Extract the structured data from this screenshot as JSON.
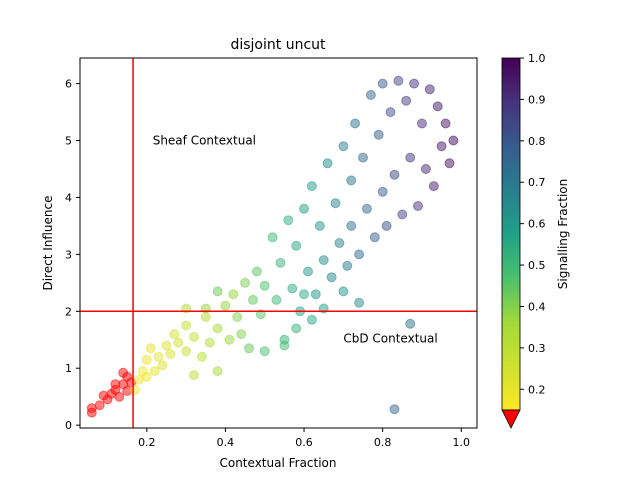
{
  "chart_data": {
    "type": "scatter",
    "title": "disjoint uncut",
    "xlabel": "Contextual Fraction",
    "ylabel": "Direct Influence",
    "xlim": [
      0.03,
      1.04
    ],
    "ylim": [
      -0.05,
      6.45
    ],
    "xticks": [
      0.2,
      0.4,
      0.6,
      0.8,
      1.0
    ],
    "xtick_labels": [
      "0.2",
      "0.4",
      "0.6",
      "0.8",
      "1.0"
    ],
    "yticks": [
      0,
      1,
      2,
      3,
      4,
      5,
      6
    ],
    "ytick_labels": [
      "0",
      "1",
      "2",
      "3",
      "4",
      "5",
      "6"
    ],
    "grid": false,
    "reference_lines": {
      "vertical_x": 0.165,
      "horizontal_y": 2.0,
      "color": "#ff0000"
    },
    "annotations": [
      {
        "text": "Sheaf Contextual",
        "x": 0.215,
        "y": 5.0
      },
      {
        "text": "CbD Contextual",
        "x": 0.7,
        "y": 1.52
      }
    ],
    "colorbar": {
      "label": "Signalling Fraction",
      "colormap": "viridis_r",
      "range": [
        0.15,
        1.0
      ],
      "ticks": [
        0.2,
        0.3,
        0.4,
        0.5,
        0.6,
        0.7,
        0.8,
        0.9,
        1.0
      ],
      "tick_labels": [
        "0.2",
        "0.3",
        "0.4",
        "0.5",
        "0.6",
        "0.7",
        "0.8",
        "0.9",
        "1.0"
      ],
      "extend_min_color": "#ff0000"
    },
    "point_alpha": 0.5,
    "below_range_color": "#ff0000",
    "series": [
      {
        "points": [
          [
            0.06,
            0.22,
            0.1
          ],
          [
            0.06,
            0.3,
            0.1
          ],
          [
            0.08,
            0.35,
            0.1
          ],
          [
            0.1,
            0.45,
            0.1
          ],
          [
            0.11,
            0.55,
            0.1
          ],
          [
            0.12,
            0.62,
            0.1
          ],
          [
            0.13,
            0.5,
            0.1
          ],
          [
            0.14,
            0.72,
            0.1
          ],
          [
            0.15,
            0.6,
            0.1
          ],
          [
            0.15,
            0.85,
            0.1
          ],
          [
            0.16,
            0.75,
            0.1
          ],
          [
            0.12,
            0.72,
            0.1
          ],
          [
            0.14,
            0.92,
            0.1
          ],
          [
            0.09,
            0.52,
            0.1
          ],
          [
            0.17,
            0.62,
            0.16
          ],
          [
            0.18,
            0.8,
            0.17
          ],
          [
            0.19,
            0.95,
            0.18
          ],
          [
            0.2,
            0.85,
            0.18
          ],
          [
            0.2,
            1.15,
            0.19
          ],
          [
            0.21,
            1.35,
            0.2
          ],
          [
            0.22,
            0.95,
            0.2
          ],
          [
            0.23,
            1.2,
            0.21
          ],
          [
            0.24,
            1.05,
            0.22
          ],
          [
            0.25,
            1.4,
            0.23
          ],
          [
            0.26,
            1.25,
            0.23
          ],
          [
            0.27,
            1.6,
            0.24
          ],
          [
            0.28,
            1.45,
            0.25
          ],
          [
            0.3,
            1.3,
            0.27
          ],
          [
            0.3,
            1.75,
            0.28
          ],
          [
            0.32,
            1.55,
            0.28
          ],
          [
            0.32,
            0.88,
            0.3
          ],
          [
            0.34,
            1.2,
            0.3
          ],
          [
            0.35,
            1.9,
            0.32
          ],
          [
            0.36,
            1.45,
            0.32
          ],
          [
            0.38,
            1.7,
            0.34
          ],
          [
            0.38,
            0.95,
            0.36
          ],
          [
            0.4,
            2.1,
            0.38
          ],
          [
            0.41,
            1.5,
            0.37
          ],
          [
            0.42,
            2.3,
            0.38
          ],
          [
            0.43,
            1.9,
            0.4
          ],
          [
            0.44,
            1.6,
            0.4
          ],
          [
            0.45,
            2.5,
            0.41
          ],
          [
            0.46,
            1.35,
            0.43
          ],
          [
            0.47,
            2.2,
            0.44
          ],
          [
            0.48,
            2.7,
            0.45
          ],
          [
            0.49,
            1.95,
            0.45
          ],
          [
            0.5,
            2.45,
            0.47
          ],
          [
            0.5,
            1.3,
            0.48
          ],
          [
            0.52,
            3.3,
            0.5
          ],
          [
            0.53,
            2.2,
            0.5
          ],
          [
            0.54,
            2.85,
            0.52
          ],
          [
            0.55,
            1.5,
            0.52
          ],
          [
            0.56,
            3.6,
            0.54
          ],
          [
            0.57,
            2.4,
            0.55
          ],
          [
            0.58,
            3.15,
            0.56
          ],
          [
            0.59,
            2.0,
            0.57
          ],
          [
            0.6,
            3.8,
            0.58
          ],
          [
            0.61,
            2.7,
            0.6
          ],
          [
            0.62,
            4.2,
            0.6
          ],
          [
            0.63,
            2.3,
            0.61
          ],
          [
            0.64,
            3.5,
            0.62
          ],
          [
            0.65,
            2.9,
            0.64
          ],
          [
            0.66,
            4.6,
            0.64
          ],
          [
            0.67,
            2.6,
            0.66
          ],
          [
            0.68,
            3.9,
            0.67
          ],
          [
            0.69,
            3.2,
            0.68
          ],
          [
            0.7,
            4.9,
            0.68
          ],
          [
            0.71,
            2.8,
            0.7
          ],
          [
            0.72,
            4.3,
            0.71
          ],
          [
            0.72,
            3.5,
            0.72
          ],
          [
            0.73,
            5.3,
            0.72
          ],
          [
            0.74,
            3.0,
            0.74
          ],
          [
            0.75,
            4.7,
            0.75
          ],
          [
            0.76,
            3.8,
            0.76
          ],
          [
            0.77,
            5.8,
            0.76
          ],
          [
            0.78,
            3.3,
            0.78
          ],
          [
            0.79,
            5.1,
            0.79
          ],
          [
            0.8,
            4.1,
            0.8
          ],
          [
            0.8,
            6.0,
            0.8
          ],
          [
            0.81,
            3.5,
            0.82
          ],
          [
            0.82,
            5.5,
            0.83
          ],
          [
            0.83,
            4.4,
            0.84
          ],
          [
            0.84,
            6.05,
            0.85
          ],
          [
            0.85,
            3.7,
            0.86
          ],
          [
            0.86,
            5.7,
            0.87
          ],
          [
            0.87,
            4.7,
            0.88
          ],
          [
            0.88,
            6.0,
            0.9
          ],
          [
            0.89,
            3.85,
            0.9
          ],
          [
            0.9,
            5.3,
            0.91
          ],
          [
            0.91,
            4.5,
            0.92
          ],
          [
            0.92,
            5.9,
            0.93
          ],
          [
            0.93,
            4.2,
            0.94
          ],
          [
            0.94,
            5.6,
            0.95
          ],
          [
            0.95,
            4.9,
            0.96
          ],
          [
            0.96,
            5.3,
            0.97
          ],
          [
            0.97,
            4.6,
            0.97
          ],
          [
            0.98,
            5.0,
            0.98
          ],
          [
            0.87,
            1.78,
            0.72
          ],
          [
            0.83,
            0.28,
            0.76
          ],
          [
            0.6,
            2.3,
            0.55
          ],
          [
            0.65,
            2.05,
            0.58
          ],
          [
            0.7,
            2.35,
            0.62
          ],
          [
            0.74,
            2.15,
            0.65
          ],
          [
            0.55,
            1.4,
            0.49
          ],
          [
            0.58,
            1.7,
            0.52
          ],
          [
            0.62,
            1.85,
            0.56
          ],
          [
            0.35,
            2.05,
            0.38
          ],
          [
            0.3,
            2.05,
            0.34
          ],
          [
            0.38,
            2.35,
            0.43
          ]
        ]
      }
    ]
  }
}
